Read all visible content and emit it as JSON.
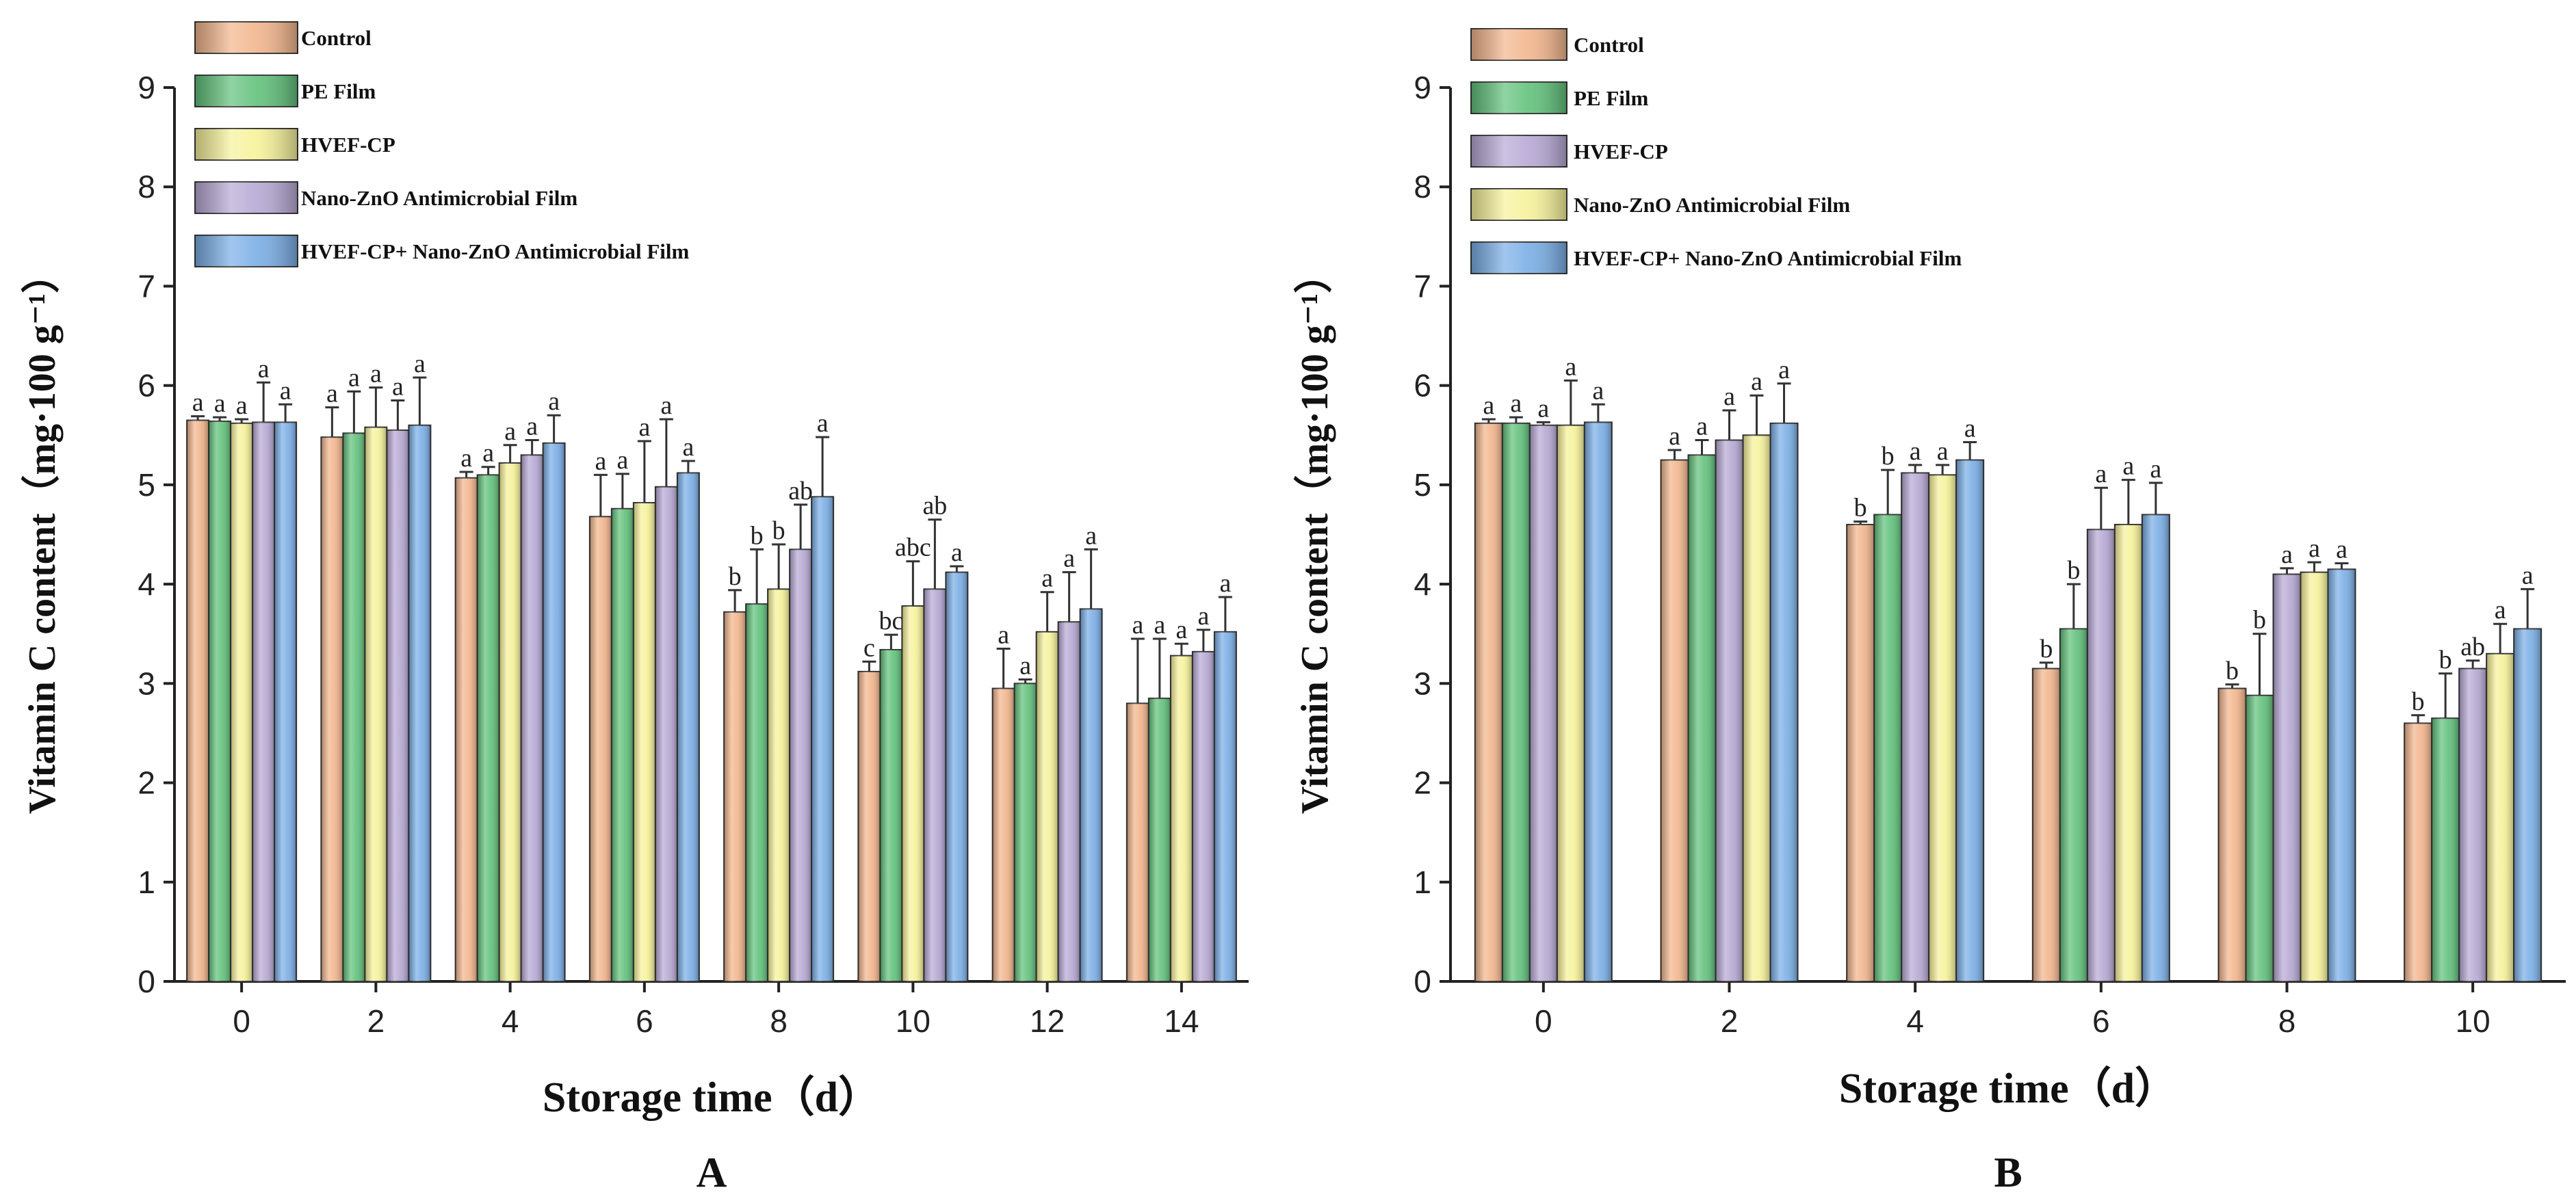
{
  "figure": {
    "panels": [
      "A",
      "B"
    ]
  },
  "chart_data": [
    {
      "type": "bar",
      "panel_label": "A",
      "xlabel": "Storage time（d）",
      "ylabel": "Vitamin C content（mg·100 g⁻¹）",
      "ylim": [
        0,
        9
      ],
      "yticks": [
        0,
        1,
        2,
        3,
        4,
        5,
        6,
        7,
        8,
        9
      ],
      "categories": [
        "0",
        "2",
        "4",
        "6",
        "8",
        "10",
        "12",
        "14"
      ],
      "legend_position": "top-left",
      "series": [
        {
          "name": "Control",
          "color": "#f2b58c",
          "values": [
            5.65,
            5.48,
            5.07,
            4.68,
            3.72,
            3.12,
            2.95,
            2.8
          ],
          "errors": [
            0.04,
            0.3,
            0.06,
            0.42,
            0.22,
            0.1,
            0.4,
            0.65
          ],
          "labels": [
            "a",
            "a",
            "a",
            "a",
            "b",
            "c",
            "a",
            "a"
          ]
        },
        {
          "name": "PE Film",
          "color": "#61c17b",
          "values": [
            5.64,
            5.52,
            5.1,
            4.76,
            3.8,
            3.34,
            3.0,
            2.85
          ],
          "errors": [
            0.04,
            0.42,
            0.08,
            0.35,
            0.55,
            0.15,
            0.04,
            0.6
          ],
          "labels": [
            "a",
            "a",
            "a",
            "a",
            "b",
            "bc",
            "a",
            "a"
          ]
        },
        {
          "name": "HVEF-CP",
          "color": "#f6f29a",
          "values": [
            5.62,
            5.58,
            5.22,
            4.82,
            3.95,
            3.78,
            3.52,
            3.28
          ],
          "errors": [
            0.04,
            0.4,
            0.18,
            0.62,
            0.45,
            0.45,
            0.4,
            0.12
          ],
          "labels": [
            "a",
            "a",
            "a",
            "a",
            "b",
            "abc",
            "a",
            "a"
          ]
        },
        {
          "name": "Nano-ZnO Antimicrobial Film",
          "color": "#b7a8d4",
          "values": [
            5.63,
            5.55,
            5.3,
            4.98,
            4.35,
            3.95,
            3.62,
            3.32
          ],
          "errors": [
            0.4,
            0.3,
            0.15,
            0.68,
            0.45,
            0.7,
            0.5,
            0.22
          ],
          "labels": [
            "a",
            "a",
            "a",
            "a",
            "ab",
            "ab",
            "a",
            "a"
          ]
        },
        {
          "name": "HVEF-CP+ Nano-ZnO Antimicrobial Film",
          "color": "#7aaee6",
          "values": [
            5.63,
            5.6,
            5.42,
            5.12,
            4.88,
            4.12,
            3.75,
            3.52
          ],
          "errors": [
            0.18,
            0.48,
            0.28,
            0.12,
            0.6,
            0.06,
            0.6,
            0.35
          ],
          "labels": [
            "a",
            "a",
            "a",
            "a",
            "a",
            "a",
            "a",
            "a"
          ]
        }
      ]
    },
    {
      "type": "bar",
      "panel_label": "B",
      "xlabel": "Storage time（d）",
      "ylabel": "Vitamin C content（mg·100 g⁻¹）",
      "ylim": [
        0,
        9
      ],
      "yticks": [
        0,
        1,
        2,
        3,
        4,
        5,
        6,
        7,
        8,
        9
      ],
      "categories": [
        "0",
        "2",
        "4",
        "6",
        "8",
        "10"
      ],
      "legend_position": "top-left",
      "series": [
        {
          "name": "Control",
          "color": "#f2b58c",
          "values": [
            5.62,
            5.25,
            4.6,
            3.15,
            2.95,
            2.6
          ],
          "errors": [
            0.04,
            0.1,
            0.03,
            0.06,
            0.04,
            0.08
          ],
          "labels": [
            "a",
            "a",
            "b",
            "b",
            "b",
            "b"
          ]
        },
        {
          "name": "PE Film",
          "color": "#61c17b",
          "values": [
            5.62,
            5.3,
            4.7,
            3.55,
            2.88,
            2.65
          ],
          "errors": [
            0.06,
            0.15,
            0.45,
            0.45,
            0.62,
            0.45
          ],
          "labels": [
            "a",
            "a",
            "b",
            "b",
            "b",
            "b"
          ]
        },
        {
          "name": "HVEF-CP",
          "color": "#b7a8d4",
          "values": [
            5.6,
            5.45,
            5.12,
            4.55,
            4.1,
            3.15
          ],
          "errors": [
            0.03,
            0.3,
            0.08,
            0.42,
            0.06,
            0.08
          ],
          "labels": [
            "a",
            "a",
            "a",
            "a",
            "a",
            "ab"
          ]
        },
        {
          "name": "Nano-ZnO Antimicrobial Film",
          "color": "#f6f29a",
          "values": [
            5.6,
            5.5,
            5.1,
            4.6,
            4.12,
            3.3
          ],
          "errors": [
            0.45,
            0.4,
            0.1,
            0.45,
            0.1,
            0.3
          ],
          "labels": [
            "a",
            "a",
            "a",
            "a",
            "a",
            "a"
          ]
        },
        {
          "name": "HVEF-CP+ Nano-ZnO Antimicrobial Film",
          "color": "#7aaee6",
          "values": [
            5.63,
            5.62,
            5.25,
            4.7,
            4.15,
            3.55
          ],
          "errors": [
            0.18,
            0.4,
            0.18,
            0.32,
            0.06,
            0.4
          ],
          "labels": [
            "a",
            "a",
            "a",
            "a",
            "a",
            "a"
          ]
        }
      ]
    }
  ]
}
